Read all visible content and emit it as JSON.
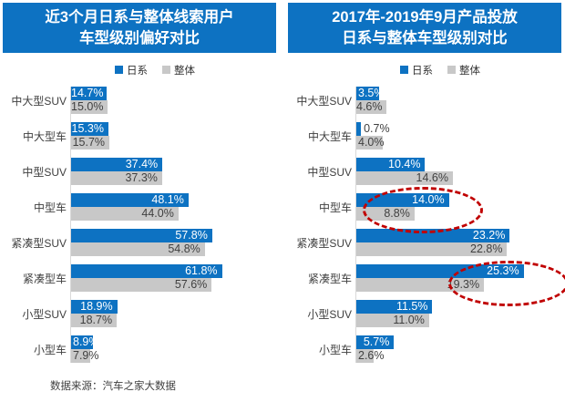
{
  "colors": {
    "brand_blue": "#0D72C2",
    "bar_gray": "#C8C8C8",
    "text_dark": "#404040",
    "highlight_red": "#C00000"
  },
  "legend": {
    "series1_label": "日系",
    "series2_label": "整体"
  },
  "footer": {
    "source_note": "数据来源：汽车之家大数据"
  },
  "chart_data": [
    {
      "type": "bar",
      "orientation": "horizontal",
      "title": "近3个月日系与整体线索用户车型级别偏好对比",
      "title_lines": [
        "近3个月日系与整体线索用户",
        "车型级别偏好对比"
      ],
      "categories": [
        "中大型SUV",
        "中大型车",
        "中型SUV",
        "中型车",
        "紧凑型SUV",
        "紧凑型车",
        "小型SUV",
        "小型车"
      ],
      "series": [
        {
          "name": "日系",
          "color": "#0D72C2",
          "values": [
            14.7,
            15.3,
            37.4,
            48.1,
            57.8,
            61.8,
            18.9,
            8.9
          ]
        },
        {
          "name": "整体",
          "color": "#C8C8C8",
          "values": [
            15.0,
            15.7,
            37.3,
            44.0,
            54.8,
            57.6,
            18.7,
            7.9
          ]
        }
      ],
      "value_suffix": "%",
      "xlim": [
        0,
        84
      ],
      "grid": false,
      "legend_position": "top",
      "data_labels": "inside-end"
    },
    {
      "type": "bar",
      "orientation": "horizontal",
      "title": "2017年-2019年9月产品投放日系与整体车型级别对比",
      "title_lines": [
        "2017年-2019年9月产品投放",
        "日系与整体车型级别对比"
      ],
      "categories": [
        "中大型SUV",
        "中大型车",
        "中型SUV",
        "中型车",
        "紧凑型SUV",
        "紧凑型车",
        "小型SUV",
        "小型车"
      ],
      "series": [
        {
          "name": "日系",
          "color": "#0D72C2",
          "values": [
            3.5,
            0.7,
            10.4,
            14.0,
            23.2,
            25.3,
            11.5,
            5.7
          ]
        },
        {
          "name": "整体",
          "color": "#C8C8C8",
          "values": [
            4.6,
            4.0,
            14.6,
            8.8,
            22.8,
            19.3,
            11.0,
            2.6
          ]
        }
      ],
      "value_suffix": "%",
      "xlim": [
        0,
        31
      ],
      "grid": false,
      "legend_position": "top",
      "data_labels": "inside-end",
      "annotations": [
        {
          "type": "ellipse",
          "style": "dashed",
          "color": "#C00000",
          "highlights": "中型车"
        },
        {
          "type": "ellipse",
          "style": "dashed",
          "color": "#C00000",
          "highlights": "紧凑型车"
        }
      ]
    }
  ]
}
